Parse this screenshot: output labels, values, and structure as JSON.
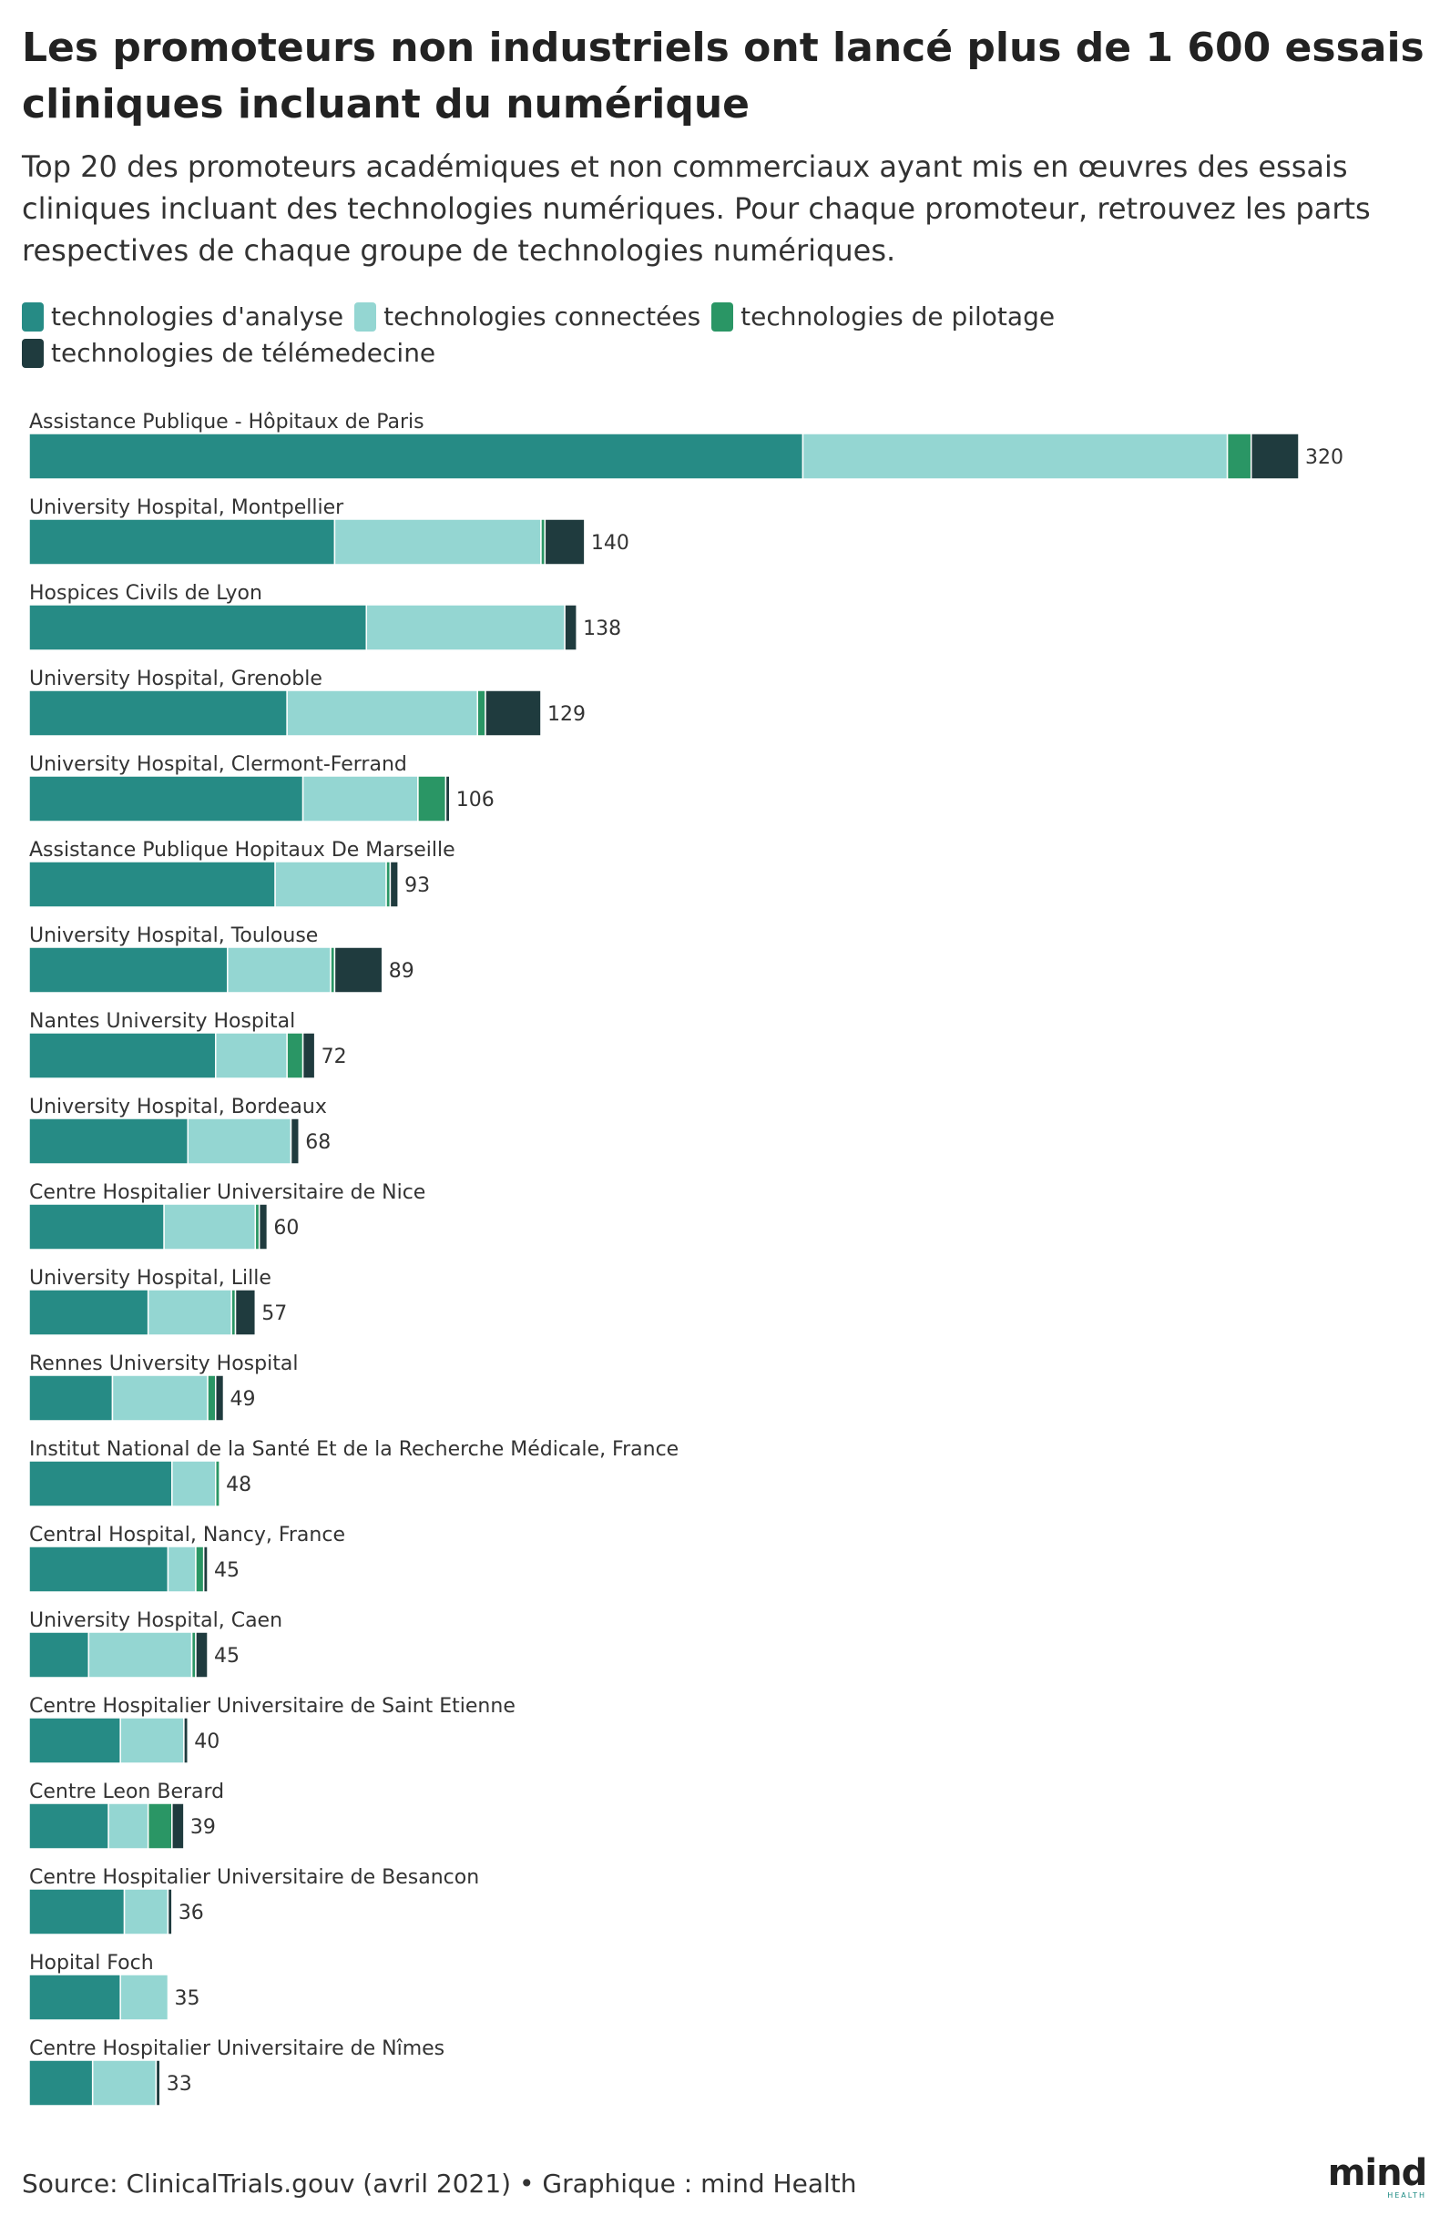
{
  "header": {
    "title": "Les promoteurs non industriels ont lancé plus de 1 600 essais cliniques incluant du numérique",
    "subtitle": "Top 20 des promoteurs académiques et non commerciaux ayant mis en œuvres des essais cliniques incluant des technologies numériques. Pour chaque promoteur, retrouvez les parts respectives de chaque groupe de technologies numériques."
  },
  "legend": {
    "items": [
      {
        "label": "technologies d'analyse",
        "color": "#268b85"
      },
      {
        "label": "technologies connectées",
        "color": "#94d6d2"
      },
      {
        "label": "technologies de pilotage",
        "color": "#2a9665"
      },
      {
        "label": "technologies de télémedecine",
        "color": "#1f3b3e"
      }
    ]
  },
  "chart_data": {
    "type": "bar",
    "orientation": "horizontal",
    "stacked": true,
    "categories": [
      "Assistance Publique - Hôpitaux de Paris",
      "University Hospital, Montpellier",
      "Hospices Civils de Lyon",
      "University Hospital, Grenoble",
      "University Hospital, Clermont-Ferrand",
      "Assistance Publique Hopitaux De Marseille",
      "University Hospital, Toulouse",
      "Nantes University Hospital",
      "University Hospital, Bordeaux",
      "Centre Hospitalier Universitaire de Nice",
      "University Hospital, Lille",
      "Rennes University Hospital",
      "Institut National de la Santé Et de la Recherche Médicale, France",
      "Central Hospital, Nancy, France",
      "University Hospital, Caen",
      "Centre Hospitalier Universitaire de Saint Etienne",
      "Centre Leon Berard",
      "Centre Hospitalier Universitaire de Besancon",
      "Hopital Foch",
      "Centre Hospitalier Universitaire de Nîmes"
    ],
    "series": [
      {
        "name": "technologies d'analyse",
        "color": "#268b85",
        "values": [
          195,
          77,
          85,
          65,
          69,
          62,
          50,
          47,
          40,
          34,
          30,
          21,
          36,
          35,
          15,
          23,
          20,
          24,
          23,
          16
        ]
      },
      {
        "name": "technologies connectées",
        "color": "#94d6d2",
        "values": [
          107,
          52,
          50,
          48,
          29,
          28,
          26,
          18,
          26,
          23,
          21,
          24,
          11,
          7,
          26,
          16,
          10,
          11,
          12,
          16
        ]
      },
      {
        "name": "technologies de pilotage",
        "color": "#2a9665",
        "values": [
          6,
          1,
          0,
          2,
          7,
          1,
          1,
          4,
          0,
          1,
          1,
          2,
          1,
          2,
          1,
          0,
          6,
          0,
          0,
          0
        ]
      },
      {
        "name": "technologies de télémedecine",
        "color": "#1f3b3e",
        "values": [
          12,
          10,
          3,
          14,
          1,
          2,
          12,
          3,
          2,
          2,
          5,
          2,
          0,
          1,
          3,
          1,
          3,
          1,
          0,
          1
        ]
      }
    ],
    "totals": [
      320,
      140,
      138,
      129,
      106,
      93,
      89,
      72,
      68,
      60,
      57,
      49,
      48,
      45,
      45,
      40,
      39,
      36,
      35,
      33
    ],
    "xlim": [
      0,
      320
    ],
    "grid": false,
    "legend_position": "top-left"
  },
  "footer": {
    "source": "Source: ClinicalTrials.gouv (avril 2021) • Graphique : mind Health",
    "brand_name": "mind",
    "brand_tag": "HEALTH"
  }
}
